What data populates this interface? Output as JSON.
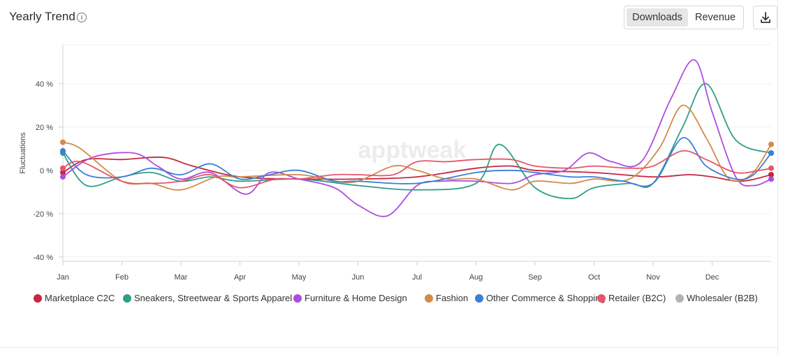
{
  "header": {
    "title": "Yearly Trend",
    "info_icon": "info-icon",
    "toggle": {
      "options": [
        "Downloads",
        "Revenue"
      ],
      "active": "Downloads"
    },
    "download_icon": "download-icon"
  },
  "watermark": "apptweak",
  "chart_data": {
    "type": "line",
    "ylabel": "Fluctuations",
    "xlabel": "",
    "y_unit": "%",
    "ylim": [
      -42,
      58
    ],
    "yticks": [
      -40,
      -20,
      0,
      20,
      40
    ],
    "ytick_labels": [
      "-40 %",
      "-20 %",
      "0 %",
      "20 %",
      "40 %"
    ],
    "categories": [
      "Jan",
      "Feb",
      "Mar",
      "Apr",
      "May",
      "Jun",
      "Jul",
      "Aug",
      "Sep",
      "Oct",
      "Nov",
      "Dec"
    ],
    "x_max": 12.0,
    "grid": true,
    "legend_position": "bottom",
    "series": [
      {
        "name": "Marketplace C2C",
        "color": "#c8253f",
        "x": [
          0,
          0.4,
          1,
          1.7,
          2.2,
          3,
          4,
          5,
          6,
          7,
          7.6,
          8,
          9,
          10,
          10.6,
          11,
          11.5,
          12.0
        ],
        "y": [
          -1,
          5,
          5,
          6,
          2,
          -3,
          -4,
          -4,
          -3,
          1,
          2,
          0,
          -1,
          -3,
          -2,
          -3,
          -5,
          -2
        ]
      },
      {
        "name": "Sneakers, Streetwear & Sports Apparel",
        "color": "#2f9e86",
        "x": [
          0,
          0.4,
          1,
          1.5,
          2,
          2.5,
          3,
          4,
          5,
          6,
          7,
          7.4,
          8,
          8.6,
          9,
          9.6,
          10,
          10.5,
          10.9,
          11.4,
          12.0
        ],
        "y": [
          8,
          -7,
          -3,
          -1,
          -5,
          -3,
          -5,
          -4,
          -7,
          -9,
          -6,
          12,
          -8,
          -13,
          -8,
          -6,
          -6,
          20,
          40,
          14,
          8
        ]
      },
      {
        "name": "Furniture & Home Design",
        "color": "#ad4ddf",
        "x": [
          0,
          0.5,
          1.2,
          1.6,
          2,
          2.5,
          3.1,
          3.5,
          4,
          4.6,
          5,
          5.5,
          6,
          6.4,
          7,
          7.6,
          8,
          8.5,
          8.9,
          9.3,
          9.8,
          10.3,
          10.7,
          11,
          11.4,
          11.7,
          12.0
        ],
        "y": [
          -3,
          6,
          8,
          2,
          -4,
          -1,
          -11,
          -1,
          -4,
          -8,
          -16,
          -21,
          -7,
          -5,
          -5,
          -6,
          -2,
          0,
          8,
          4,
          4,
          33,
          51,
          27,
          -3,
          -7,
          -4
        ]
      },
      {
        "name": "Fashion",
        "color": "#d48b4a",
        "x": [
          0,
          0.3,
          1,
          1.5,
          2,
          2.6,
          3,
          4,
          4.6,
          5,
          5.6,
          6,
          6.5,
          7,
          7.6,
          8,
          8.6,
          9,
          9.6,
          10.1,
          10.5,
          10.9,
          11.2,
          11.4,
          11.7,
          12.0
        ],
        "y": [
          13,
          10,
          -5,
          -6,
          -9,
          -3,
          -3,
          -2,
          -5,
          -5,
          2,
          0,
          -4,
          -4,
          -9,
          -5,
          -6,
          -4,
          -4,
          10,
          30,
          15,
          -1,
          -5,
          -1,
          12
        ]
      },
      {
        "name": "Other Commerce & Shopping",
        "color": "#3c7fd6",
        "x": [
          0,
          0.4,
          1,
          1.5,
          2,
          2.5,
          3,
          3.5,
          4,
          4.6,
          5,
          6,
          7,
          7.6,
          8,
          8.6,
          9,
          9.5,
          10,
          10.5,
          10.9,
          11.4,
          11.7,
          12.0
        ],
        "y": [
          9,
          -2,
          -3,
          1,
          -2,
          3,
          -4,
          -2,
          0,
          -5,
          -5,
          -6,
          -1,
          0,
          -1,
          -3,
          -3,
          -5,
          -6,
          15,
          2,
          -4,
          -2,
          8
        ]
      },
      {
        "name": "Retailer (B2C)",
        "color": "#e5566a",
        "x": [
          0,
          0.3,
          1,
          1.5,
          2,
          2.5,
          3,
          3.6,
          4,
          4.6,
          5,
          5.6,
          6,
          6.5,
          7,
          7.6,
          8,
          8.6,
          9,
          9.6,
          10,
          10.5,
          10.9,
          11.4,
          11.8,
          12.0
        ],
        "y": [
          1,
          4,
          -5,
          -6,
          -5,
          -2,
          -8,
          -4,
          -4,
          -2,
          -2,
          -2,
          4,
          4,
          5,
          5,
          2,
          1,
          2,
          1,
          2,
          9,
          5,
          -1,
          0,
          1
        ]
      },
      {
        "name": "Wholesaler (B2B)",
        "color": "#b3b3b3",
        "x": [],
        "y": []
      }
    ]
  }
}
